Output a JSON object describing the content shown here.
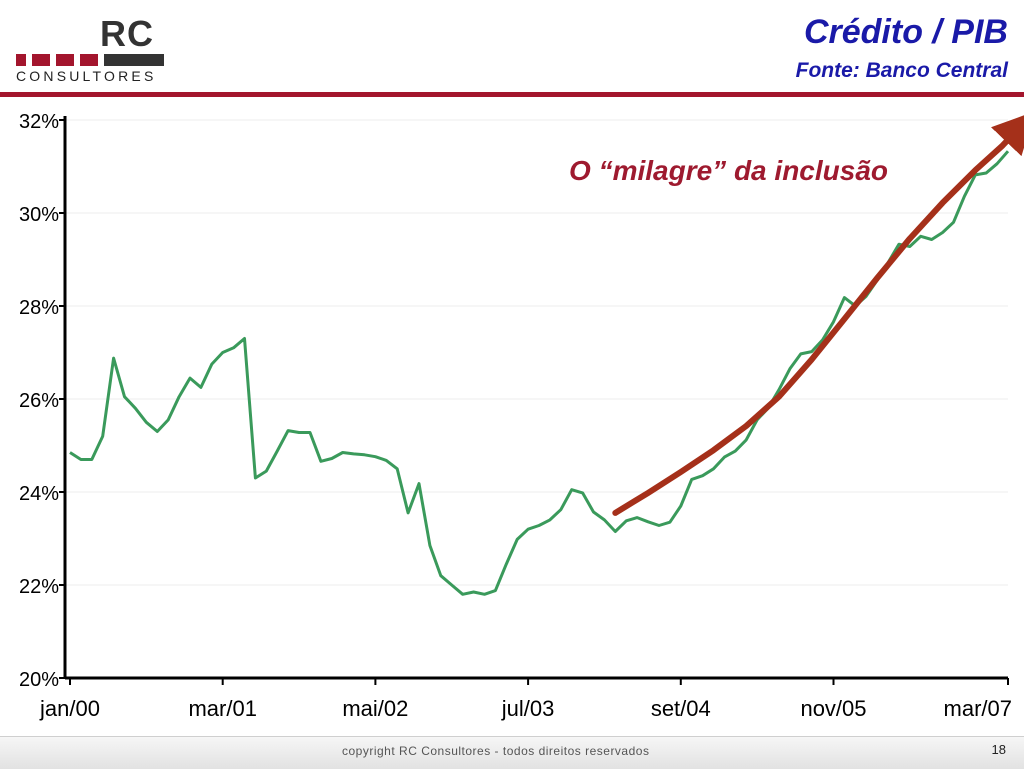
{
  "logo": {
    "name": "RC",
    "subtitle": "CONSULTORES",
    "bar_color": "#a3152d",
    "dark_color": "#333333"
  },
  "header": {
    "title": "Crédito / PIB",
    "source": "Fonte: Banco Central",
    "text_color": "#1a1aa8",
    "rule_color": "#a3152d"
  },
  "chart_data": {
    "type": "line",
    "title": "",
    "xlabel": "",
    "ylabel": "",
    "ylim": [
      20,
      32
    ],
    "y_ticks": [
      20,
      22,
      24,
      26,
      28,
      30,
      32
    ],
    "y_tick_labels": [
      "20%",
      "22%",
      "24%",
      "26%",
      "28%",
      "30%",
      "32%"
    ],
    "x_tick_labels": [
      "jan/00",
      "mar/01",
      "mai/02",
      "jul/03",
      "set/04",
      "nov/05",
      "mar/07"
    ],
    "x_tick_positions": [
      0,
      14,
      28,
      42,
      56,
      70,
      86
    ],
    "grid": "horizontal",
    "legend": "none",
    "series": [
      {
        "color": "#3a9a5b",
        "values": [
          24.85,
          24.7,
          24.7,
          25.2,
          26.88,
          26.05,
          25.8,
          25.5,
          25.3,
          25.55,
          26.05,
          26.45,
          26.25,
          26.75,
          27.0,
          27.1,
          27.3,
          24.3,
          24.45,
          24.88,
          25.32,
          25.28,
          25.28,
          24.66,
          24.72,
          24.85,
          24.82,
          24.8,
          24.76,
          24.68,
          24.5,
          23.55,
          24.18,
          22.85,
          22.2,
          22.0,
          21.8,
          21.85,
          21.8,
          21.88,
          22.45,
          22.98,
          23.2,
          23.28,
          23.4,
          23.62,
          24.05,
          23.98,
          23.57,
          23.4,
          23.15,
          23.38,
          23.45,
          23.36,
          23.28,
          23.35,
          23.7,
          24.27,
          24.35,
          24.5,
          24.75,
          24.88,
          25.12,
          25.55,
          25.8,
          26.2,
          26.65,
          26.97,
          27.02,
          27.27,
          27.66,
          28.18,
          28.0,
          28.21,
          28.55,
          28.93,
          29.33,
          29.28,
          29.5,
          29.43,
          29.58,
          29.8,
          30.36,
          30.82,
          30.86,
          31.06,
          31.33
        ]
      }
    ],
    "annotations": [
      {
        "text": "O “milagre” da inclusão",
        "color": "#9e1a2f"
      },
      {
        "type": "arrow",
        "color": "#a5301a",
        "points": [
          [
            50,
            23.55
          ],
          [
            53,
            23.98
          ],
          [
            56,
            24.43
          ],
          [
            59,
            24.9
          ],
          [
            62,
            25.42
          ],
          [
            65,
            26.05
          ],
          [
            68,
            26.85
          ],
          [
            71,
            27.72
          ],
          [
            74,
            28.6
          ],
          [
            77,
            29.45
          ],
          [
            80,
            30.22
          ],
          [
            83,
            30.92
          ],
          [
            85.5,
            31.45
          ],
          [
            86.6,
            31.72
          ]
        ]
      }
    ]
  },
  "footer": {
    "copyright": "copyright RC Consultores - todos direitos reservados",
    "page_number": "18"
  }
}
